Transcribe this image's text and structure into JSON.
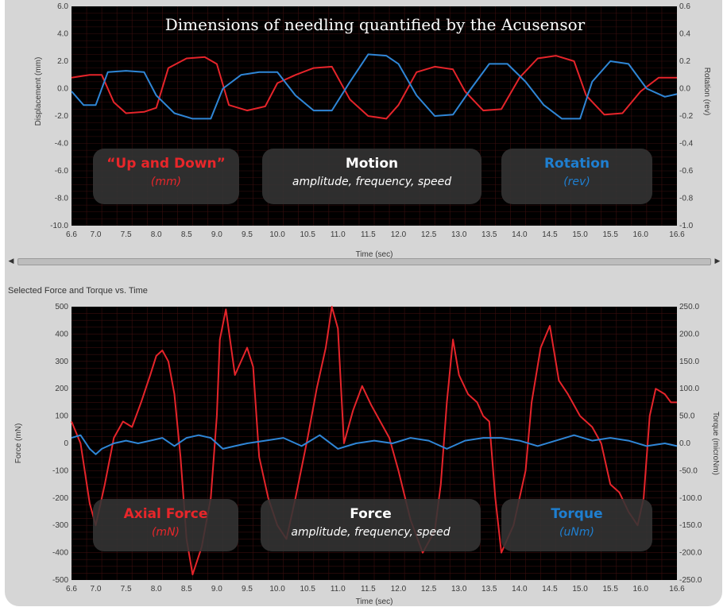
{
  "window": {
    "title": "Dimensions of needling quantified by the Acusensor"
  },
  "colors": {
    "red_series": "#e5242a",
    "blue_series": "#2f86d6",
    "plot_bg": "#000000",
    "grid": "#3a0e0e",
    "panel_bg": "#d6d6d6"
  },
  "top_chart": {
    "left_label": "Displacement (mm)",
    "right_label": "Rotation (rev)",
    "x_label": "Time (sec)",
    "left_ticks": [
      "6.0",
      "4.0",
      "2.0",
      "0.0",
      "-2.0",
      "-4.0",
      "-6.0",
      "-8.0",
      "-10.0"
    ],
    "right_ticks": [
      "0.6",
      "0.4",
      "0.2",
      "0.0",
      "-0.2",
      "-0.4",
      "-0.6",
      "-0.8",
      "-1.0"
    ],
    "x_ticks": [
      "6.6",
      "7.0",
      "7.5",
      "8.0",
      "8.5",
      "9.0",
      "9.5",
      "10.0",
      "10.5",
      "11.0",
      "11.5",
      "12.0",
      "12.5",
      "13.0",
      "13.5",
      "14.0",
      "14.5",
      "15.0",
      "15.5",
      "16.0",
      "16.6"
    ],
    "boxes": [
      {
        "heading": "“Up and Down”",
        "sub": "(mm)",
        "color": "red"
      },
      {
        "heading": "Motion",
        "sub": "amplitude, frequency, speed",
        "color": "white"
      },
      {
        "heading": "Rotation",
        "sub": "(rev)",
        "color": "blue"
      }
    ]
  },
  "scrollbar": {
    "left_arrow": "◀",
    "right_arrow": "▶"
  },
  "bottom_chart": {
    "title": "Selected Force and Torque vs. Time",
    "left_label": "Force (mN)",
    "right_label": "Torque (microNm)",
    "x_label": "Time (sec)",
    "left_ticks": [
      "500",
      "400",
      "300",
      "200",
      "100",
      "0",
      "-100",
      "-200",
      "-300",
      "-400",
      "-500"
    ],
    "right_ticks": [
      "250.0",
      "200.0",
      "150.0",
      "100.0",
      "50.0",
      "0.0",
      "-50.0",
      "-100.0",
      "-150.0",
      "-200.0",
      "-250.0"
    ],
    "x_ticks": [
      "6.6",
      "7.0",
      "7.5",
      "8.0",
      "8.5",
      "9.0",
      "9.5",
      "10.0",
      "10.5",
      "11.0",
      "11.5",
      "12.0",
      "12.5",
      "13.0",
      "13.5",
      "14.0",
      "14.5",
      "15.0",
      "15.5",
      "16.0",
      "16.6"
    ],
    "boxes": [
      {
        "heading": "Axial Force",
        "sub": "(mN)",
        "color": "red"
      },
      {
        "heading": "Force",
        "sub": "amplitude, frequency, speed",
        "color": "white"
      },
      {
        "heading": "Torque",
        "sub": "(uNm)",
        "color": "blue"
      }
    ]
  },
  "chart_data": [
    {
      "type": "line",
      "title": "Dimensions of needling quantified by the Acusensor",
      "xlabel": "Time (sec)",
      "ylabel": "Displacement (mm)",
      "y2label": "Rotation (rev)",
      "xlim": [
        6.6,
        16.6
      ],
      "ylim": [
        -10.0,
        6.0
      ],
      "y2lim": [
        -1.0,
        0.6
      ],
      "grid": true,
      "series": [
        {
          "name": "“Up and Down”",
          "axis": "left",
          "color": "#e5242a",
          "x": [
            6.6,
            6.9,
            7.1,
            7.3,
            7.5,
            7.8,
            8.0,
            8.2,
            8.5,
            8.8,
            9.0,
            9.2,
            9.5,
            9.8,
            10.0,
            10.3,
            10.6,
            10.9,
            11.2,
            11.5,
            11.8,
            12.0,
            12.3,
            12.6,
            12.9,
            13.1,
            13.4,
            13.7,
            14.0,
            14.3,
            14.6,
            14.9,
            15.1,
            15.4,
            15.7,
            16.0,
            16.3,
            16.6
          ],
          "y": [
            0.8,
            1.0,
            1.0,
            -1.0,
            -1.8,
            -1.7,
            -1.4,
            1.5,
            2.2,
            2.3,
            1.8,
            -1.2,
            -1.6,
            -1.3,
            0.4,
            1.0,
            1.5,
            1.6,
            -0.8,
            -2.0,
            -2.2,
            -1.2,
            1.2,
            1.6,
            1.4,
            -0.2,
            -1.6,
            -1.5,
            0.8,
            2.2,
            2.4,
            2.0,
            -0.5,
            -1.9,
            -1.8,
            -0.2,
            0.8,
            0.8
          ]
        },
        {
          "name": "Rotation",
          "axis": "right",
          "color": "#2f86d6",
          "x": [
            6.6,
            6.8,
            7.0,
            7.2,
            7.5,
            7.8,
            8.0,
            8.3,
            8.6,
            8.9,
            9.1,
            9.4,
            9.7,
            10.0,
            10.3,
            10.6,
            10.9,
            11.2,
            11.5,
            11.8,
            12.0,
            12.3,
            12.6,
            12.9,
            13.2,
            13.5,
            13.8,
            14.1,
            14.4,
            14.7,
            15.0,
            15.2,
            15.5,
            15.8,
            16.1,
            16.4,
            16.6
          ],
          "y": [
            -0.02,
            -0.12,
            -0.12,
            0.12,
            0.13,
            0.12,
            -0.05,
            -0.18,
            -0.22,
            -0.22,
            0.0,
            0.1,
            0.12,
            0.12,
            -0.05,
            -0.16,
            -0.16,
            0.05,
            0.25,
            0.24,
            0.18,
            -0.05,
            -0.2,
            -0.19,
            0.0,
            0.18,
            0.18,
            0.05,
            -0.12,
            -0.22,
            -0.22,
            0.05,
            0.2,
            0.18,
            0.0,
            -0.06,
            -0.04
          ]
        }
      ]
    },
    {
      "type": "line",
      "title": "Selected Force and Torque vs. Time",
      "xlabel": "Time (sec)",
      "ylabel": "Force (mN)",
      "y2label": "Torque (microNm)",
      "xlim": [
        6.6,
        16.6
      ],
      "ylim": [
        -500,
        500
      ],
      "y2lim": [
        -250.0,
        250.0
      ],
      "grid": true,
      "series": [
        {
          "name": "Axial Force",
          "axis": "left",
          "color": "#e5242a",
          "x": [
            6.6,
            6.75,
            6.9,
            7.0,
            7.15,
            7.3,
            7.45,
            7.6,
            7.75,
            7.9,
            8.0,
            8.1,
            8.2,
            8.3,
            8.4,
            8.5,
            8.6,
            8.75,
            8.9,
            9.0,
            9.05,
            9.15,
            9.3,
            9.5,
            9.6,
            9.7,
            9.85,
            10.0,
            10.15,
            10.3,
            10.5,
            10.65,
            10.8,
            10.9,
            11.0,
            11.1,
            11.25,
            11.4,
            11.55,
            11.7,
            11.85,
            12.0,
            12.2,
            12.4,
            12.6,
            12.7,
            12.8,
            12.9,
            13.0,
            13.15,
            13.3,
            13.4,
            13.5,
            13.6,
            13.7,
            13.8,
            13.9,
            14.0,
            14.1,
            14.2,
            14.35,
            14.5,
            14.65,
            14.8,
            15.0,
            15.2,
            15.35,
            15.5,
            15.65,
            15.8,
            15.95,
            16.05,
            16.15,
            16.25,
            16.4,
            16.5,
            16.6
          ],
          "y": [
            80,
            0,
            -220,
            -300,
            -150,
            20,
            80,
            60,
            150,
            250,
            320,
            340,
            300,
            180,
            -50,
            -350,
            -480,
            -380,
            -200,
            100,
            380,
            490,
            250,
            350,
            280,
            -50,
            -200,
            -300,
            -350,
            -200,
            20,
            200,
            350,
            500,
            420,
            0,
            120,
            210,
            140,
            80,
            20,
            -100,
            -280,
            -400,
            -320,
            -150,
            150,
            380,
            250,
            180,
            150,
            100,
            80,
            -200,
            -400,
            -350,
            -300,
            -200,
            -100,
            150,
            350,
            430,
            230,
            180,
            100,
            60,
            0,
            -150,
            -180,
            -250,
            -300,
            -200,
            100,
            200,
            180,
            150,
            150
          ]
        },
        {
          "name": "Torque",
          "axis": "right",
          "color": "#2f86d6",
          "x": [
            6.6,
            6.75,
            6.9,
            7.0,
            7.1,
            7.3,
            7.5,
            7.7,
            7.9,
            8.1,
            8.3,
            8.5,
            8.7,
            8.9,
            9.1,
            9.3,
            9.5,
            9.8,
            10.1,
            10.4,
            10.7,
            11.0,
            11.3,
            11.6,
            11.9,
            12.2,
            12.5,
            12.8,
            13.1,
            13.4,
            13.7,
            14.0,
            14.3,
            14.6,
            14.9,
            15.2,
            15.5,
            15.8,
            16.1,
            16.4,
            16.6
          ],
          "y": [
            10,
            15,
            -10,
            -20,
            -10,
            0,
            5,
            0,
            5,
            10,
            -5,
            10,
            15,
            10,
            -10,
            -5,
            0,
            5,
            10,
            -5,
            15,
            -10,
            0,
            5,
            0,
            10,
            5,
            -10,
            5,
            10,
            10,
            5,
            -5,
            5,
            15,
            5,
            10,
            5,
            -5,
            0,
            -5
          ]
        }
      ]
    }
  ]
}
